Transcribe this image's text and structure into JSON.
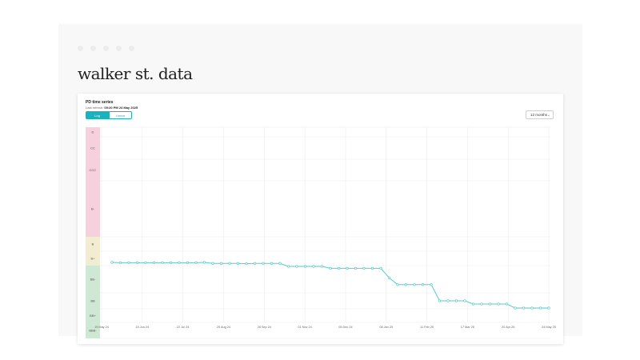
{
  "brand": {
    "title": "walker st. data"
  },
  "card": {
    "title": "PD time series",
    "refresh_label": "Last refresh:",
    "refresh_time": "09:20 PM 24 May 2025",
    "toggle": {
      "log_label": "Log",
      "linear_label": "Linear",
      "active": "Log"
    },
    "period": {
      "selected": "12 months",
      "icon": "chevron-down-icon"
    }
  },
  "colors": {
    "accent": "#19b2bd",
    "line": "#5cc9c9"
  },
  "chart_data": {
    "type": "line",
    "y_scale": "categorical-rating",
    "rating_bands": [
      {
        "label": "D",
        "color": "#f6d0dc"
      },
      {
        "label": "CC",
        "color": "#f6d0dc"
      },
      {
        "label": "CCC",
        "color": "#f6d0dc"
      },
      {
        "label": "B-",
        "color": "#f6d0dc"
      },
      {
        "label": "B",
        "color": "#f2ecd0"
      },
      {
        "label": "B+",
        "color": "#f2ecd0"
      },
      {
        "label": "BB-",
        "color": "#cfe8d3"
      },
      {
        "label": "BB",
        "color": "#cfe8d3"
      },
      {
        "label": "BB+",
        "color": "#cfe8d3"
      },
      {
        "label": "BBB-",
        "color": "#cfe8d3"
      }
    ],
    "x_tick_labels": [
      "19 May 24",
      "15 Jun 24",
      "22 Jul 24",
      "25 Aug 24",
      "28 Sep 24",
      "01 Nov 24",
      "05 Dec 24",
      "08 Jan 25",
      "11 Feb 25",
      "17 Mar 25",
      "20 Apr 25",
      "24 May 25"
    ],
    "series": [
      {
        "values": [
          5.78,
          5.8,
          5.8,
          5.8,
          5.8,
          5.8,
          5.8,
          5.8,
          5.8,
          5.8,
          5.8,
          5.78,
          5.85,
          5.85,
          5.85,
          5.85,
          5.87,
          5.85,
          5.85,
          5.85,
          5.85,
          6.03,
          6.03,
          6.03,
          6.03,
          6.03,
          6.1,
          6.1,
          6.1,
          6.1,
          6.1,
          6.1,
          6.1,
          6.45,
          6.7,
          6.7,
          6.7,
          6.7,
          6.7,
          7.5,
          7.5,
          7.5,
          7.5,
          7.7,
          7.7,
          7.7,
          7.7,
          7.7,
          7.95,
          7.95,
          7.95,
          7.95,
          7.95
        ]
      }
    ],
    "grid": true,
    "legend": "none"
  }
}
